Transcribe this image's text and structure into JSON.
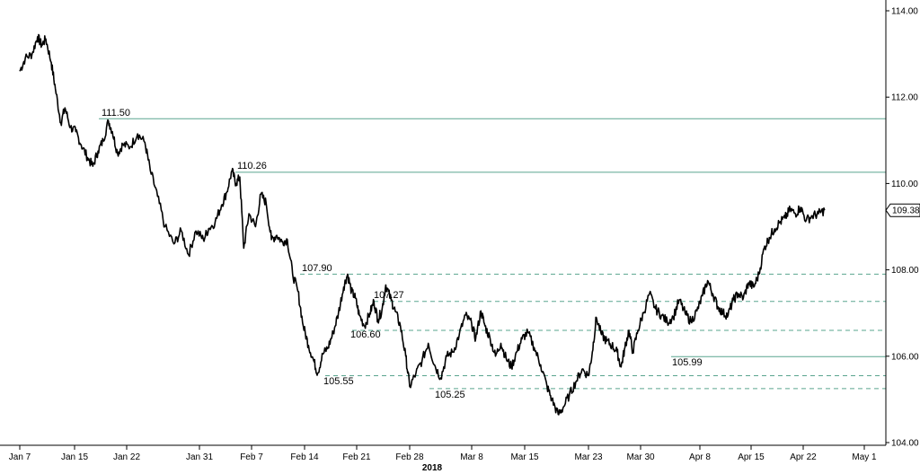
{
  "chart_data": {
    "type": "line",
    "title": "",
    "xlabel": "2018",
    "ylabel": "",
    "ylim": [
      104,
      114
    ],
    "y_ticks": [
      {
        "value": 104,
        "label": "104.00"
      },
      {
        "value": 106,
        "label": "106.00"
      },
      {
        "value": 108,
        "label": "108.00"
      },
      {
        "value": 110,
        "label": "110.00"
      },
      {
        "value": 112,
        "label": "112.00"
      },
      {
        "value": 114,
        "label": "114.00"
      }
    ],
    "x_ticks": [
      "Jan 7",
      "Jan 15",
      "Jan 22",
      "Jan 31",
      "Feb 7",
      "Feb 14",
      "Feb 21",
      "Feb 28",
      "Mar 8",
      "Mar 15",
      "Mar 23",
      "Mar 30",
      "Apr 8",
      "Apr 15",
      "Apr 22",
      "May 1"
    ],
    "grid": false,
    "last_value": {
      "value": 109.38,
      "label": "109.38"
    },
    "levels": [
      {
        "value": 111.5,
        "label": "111.50",
        "style": "solid"
      },
      {
        "value": 110.26,
        "label": "110.26",
        "style": "solid"
      },
      {
        "value": 107.9,
        "label": "107.90",
        "style": "dashed"
      },
      {
        "value": 107.27,
        "label": "107.27",
        "style": "dashed"
      },
      {
        "value": 106.6,
        "label": "106.60",
        "style": "dashed"
      },
      {
        "value": 105.99,
        "label": "105.99",
        "style": "solid"
      },
      {
        "value": 105.55,
        "label": "105.55",
        "style": "dashed"
      },
      {
        "value": 105.25,
        "label": "105.25",
        "style": "dashed"
      }
    ],
    "series": [
      {
        "values": [
          [
            0,
            112.6
          ],
          [
            0.4,
            112.9
          ],
          [
            0.9,
            113.0
          ],
          [
            1.3,
            113.4
          ],
          [
            1.6,
            113.2
          ],
          [
            1.9,
            113.35
          ],
          [
            2.3,
            112.8
          ],
          [
            2.6,
            112.2
          ],
          [
            3.0,
            111.4
          ],
          [
            3.3,
            111.75
          ],
          [
            3.7,
            111.3
          ],
          [
            4.1,
            111.2
          ],
          [
            4.5,
            110.9
          ],
          [
            5.0,
            110.6
          ],
          [
            5.4,
            110.4
          ],
          [
            5.8,
            110.75
          ],
          [
            6.2,
            111.0
          ],
          [
            6.6,
            111.45
          ],
          [
            6.9,
            111.2
          ],
          [
            7.3,
            110.7
          ],
          [
            7.7,
            110.9
          ],
          [
            8.2,
            110.85
          ],
          [
            8.6,
            111.15
          ],
          [
            9.0,
            110.95
          ],
          [
            9.3,
            110.3
          ],
          [
            9.7,
            109.7
          ],
          [
            10.1,
            109.0
          ],
          [
            10.6,
            108.6
          ],
          [
            11.0,
            108.9
          ],
          [
            11.4,
            108.35
          ],
          [
            11.8,
            108.9
          ],
          [
            12.3,
            108.7
          ],
          [
            12.7,
            108.95
          ],
          [
            13.2,
            109.1
          ],
          [
            13.7,
            109.5
          ],
          [
            14.1,
            109.8
          ],
          [
            14.5,
            110.3
          ],
          [
            14.8,
            110.0
          ],
          [
            15.1,
            110.15
          ],
          [
            15.4,
            108.5
          ],
          [
            15.8,
            109.3
          ],
          [
            16.3,
            109.0
          ],
          [
            16.7,
            109.75
          ],
          [
            17.1,
            109.55
          ],
          [
            17.5,
            108.7
          ],
          [
            17.9,
            108.8
          ],
          [
            18.3,
            108.65
          ],
          [
            18.7,
            108.7
          ],
          [
            19.1,
            107.9
          ],
          [
            19.5,
            107.5
          ],
          [
            19.9,
            106.7
          ],
          [
            20.3,
            106.25
          ],
          [
            20.7,
            105.9
          ],
          [
            21.0,
            105.6
          ],
          [
            21.4,
            106.05
          ],
          [
            21.8,
            106.2
          ],
          [
            22.2,
            106.55
          ],
          [
            22.6,
            107.0
          ],
          [
            23.0,
            107.6
          ],
          [
            23.3,
            107.9
          ],
          [
            23.6,
            107.5
          ],
          [
            23.9,
            107.35
          ],
          [
            24.2,
            106.95
          ],
          [
            24.6,
            106.7
          ],
          [
            25.0,
            107.0
          ],
          [
            25.3,
            107.27
          ],
          [
            25.6,
            106.85
          ],
          [
            25.9,
            107.05
          ],
          [
            26.2,
            107.65
          ],
          [
            26.6,
            107.3
          ],
          [
            26.9,
            107.05
          ],
          [
            27.3,
            106.7
          ],
          [
            27.7,
            106.0
          ],
          [
            28.0,
            105.3
          ],
          [
            28.4,
            105.6
          ],
          [
            28.8,
            105.9
          ],
          [
            29.2,
            106.3
          ],
          [
            29.6,
            105.8
          ],
          [
            30.0,
            105.5
          ],
          [
            30.4,
            106.0
          ],
          [
            30.8,
            106.1
          ],
          [
            31.2,
            106.5
          ],
          [
            31.6,
            106.95
          ],
          [
            32.0,
            106.75
          ],
          [
            32.3,
            106.4
          ],
          [
            32.7,
            107.05
          ],
          [
            33.0,
            106.7
          ],
          [
            33.4,
            106.4
          ],
          [
            33.8,
            106.0
          ],
          [
            34.2,
            106.3
          ],
          [
            34.6,
            105.95
          ],
          [
            35.0,
            105.75
          ],
          [
            35.4,
            106.1
          ],
          [
            35.8,
            106.4
          ],
          [
            36.2,
            106.55
          ],
          [
            36.6,
            106.2
          ],
          [
            37.0,
            105.8
          ],
          [
            37.4,
            105.3
          ],
          [
            37.7,
            105.0
          ],
          [
            38.1,
            104.65
          ],
          [
            38.4,
            104.8
          ],
          [
            38.8,
            105.1
          ],
          [
            39.2,
            105.4
          ],
          [
            39.6,
            105.7
          ],
          [
            40.0,
            105.55
          ],
          [
            40.3,
            106.1
          ],
          [
            40.6,
            106.9
          ],
          [
            41.0,
            106.5
          ],
          [
            41.4,
            106.35
          ],
          [
            41.8,
            106.25
          ],
          [
            42.2,
            106.1
          ],
          [
            42.5,
            105.75
          ],
          [
            42.8,
            106.2
          ],
          [
            43.1,
            106.6
          ],
          [
            43.4,
            106.1
          ],
          [
            43.8,
            106.6
          ],
          [
            44.2,
            107.0
          ],
          [
            44.6,
            107.45
          ],
          [
            45.0,
            107.1
          ],
          [
            45.4,
            106.95
          ],
          [
            45.8,
            106.8
          ],
          [
            46.2,
            106.9
          ],
          [
            46.6,
            107.3
          ],
          [
            47.0,
            107.0
          ],
          [
            47.4,
            106.8
          ],
          [
            47.8,
            107.05
          ],
          [
            48.2,
            107.4
          ],
          [
            48.6,
            107.75
          ],
          [
            49.0,
            107.45
          ],
          [
            49.4,
            107.15
          ],
          [
            49.8,
            107.0
          ],
          [
            50.2,
            106.95
          ],
          [
            50.6,
            107.3
          ],
          [
            51.0,
            107.45
          ],
          [
            51.4,
            107.35
          ],
          [
            51.8,
            107.7
          ],
          [
            52.2,
            107.6
          ],
          [
            52.6,
            107.9
          ],
          [
            53.0,
            108.5
          ],
          [
            53.4,
            108.75
          ],
          [
            53.8,
            108.95
          ],
          [
            54.2,
            109.1
          ],
          [
            54.6,
            109.2
          ],
          [
            55.0,
            109.4
          ],
          [
            55.4,
            109.3
          ],
          [
            55.8,
            109.45
          ],
          [
            56.2,
            109.15
          ],
          [
            56.6,
            109.25
          ],
          [
            57.0,
            109.3
          ],
          [
            57.4,
            109.38
          ]
        ]
      }
    ]
  }
}
